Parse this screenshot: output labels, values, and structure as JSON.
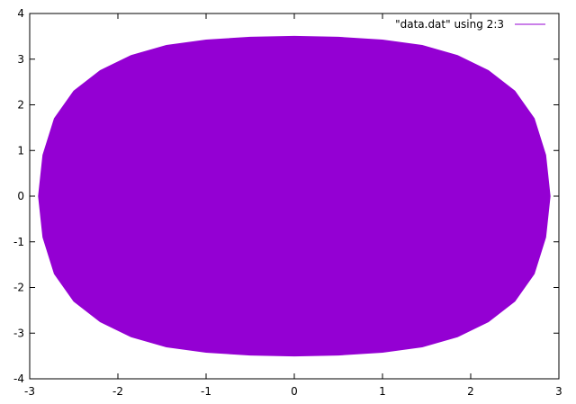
{
  "chart_data": {
    "type": "line",
    "xlim": [
      -3,
      3
    ],
    "ylim": [
      -4,
      4
    ],
    "xticks": [
      {
        "value": -3,
        "label": "-3"
      },
      {
        "value": -2,
        "label": "-2"
      },
      {
        "value": -1,
        "label": "-1"
      },
      {
        "value": 0,
        "label": "0"
      },
      {
        "value": 1,
        "label": "1"
      },
      {
        "value": 2,
        "label": "2"
      },
      {
        "value": 3,
        "label": "3"
      }
    ],
    "yticks": [
      {
        "value": -4,
        "label": "-4"
      },
      {
        "value": -3,
        "label": "-3"
      },
      {
        "value": -2,
        "label": "-2"
      },
      {
        "value": -1,
        "label": "-1"
      },
      {
        "value": 0,
        "label": "0"
      },
      {
        "value": 1,
        "label": "1"
      },
      {
        "value": 2,
        "label": "2"
      },
      {
        "value": 3,
        "label": "3"
      },
      {
        "value": 4,
        "label": "4"
      }
    ],
    "grid": false,
    "legend_position": "top-right",
    "series": [
      {
        "name": "\"data.dat\" using 2:3",
        "color": "#9400d3",
        "fill": true,
        "x": [
          2.9,
          2.85,
          2.72,
          2.5,
          2.2,
          1.85,
          1.45,
          1.0,
          0.5,
          0.0,
          -0.5,
          -1.0,
          -1.45,
          -1.85,
          -2.2,
          -2.5,
          -2.72,
          -2.85,
          -2.9,
          -2.85,
          -2.72,
          -2.5,
          -2.2,
          -1.85,
          -1.45,
          -1.0,
          -0.5,
          0.0,
          0.5,
          1.0,
          1.45,
          1.85,
          2.2,
          2.5,
          2.72,
          2.85,
          2.9
        ],
        "y": [
          0.0,
          0.9,
          1.7,
          2.3,
          2.75,
          3.08,
          3.3,
          3.42,
          3.48,
          3.5,
          3.48,
          3.42,
          3.3,
          3.08,
          2.75,
          2.3,
          1.7,
          0.9,
          0.0,
          -0.9,
          -1.7,
          -2.3,
          -2.75,
          -3.08,
          -3.3,
          -3.42,
          -3.48,
          -3.5,
          -3.48,
          -3.42,
          -3.3,
          -3.08,
          -2.75,
          -2.3,
          -1.7,
          -0.9,
          0.0
        ]
      }
    ]
  }
}
